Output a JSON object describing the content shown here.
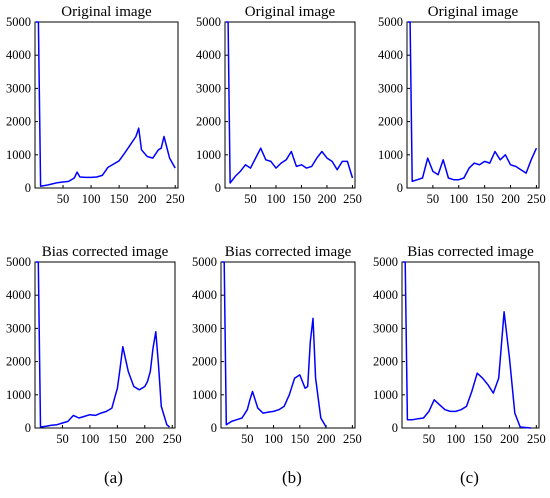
{
  "chart_data": [
    {
      "id": "a-top",
      "type": "line",
      "title": "Original image",
      "xlim": [
        0,
        255
      ],
      "ylim": [
        0,
        5000
      ],
      "xticks": [
        "50",
        "100",
        "150",
        "200",
        "250"
      ],
      "yticks": [
        "0",
        "1000",
        "2000",
        "3000",
        "4000",
        "5000"
      ],
      "series": [
        {
          "color": "#0000ff",
          "x": [
            2,
            6,
            10,
            20,
            30,
            40,
            50,
            60,
            70,
            75,
            80,
            90,
            100,
            110,
            120,
            130,
            140,
            150,
            160,
            170,
            180,
            185,
            190,
            200,
            210,
            220,
            225,
            230,
            240,
            250
          ],
          "y": [
            5000,
            5000,
            50,
            80,
            120,
            160,
            180,
            200,
            300,
            480,
            330,
            320,
            320,
            330,
            380,
            620,
            720,
            820,
            1050,
            1300,
            1550,
            1800,
            1150,
            950,
            900,
            1150,
            1200,
            1550,
            900,
            600
          ]
        }
      ]
    },
    {
      "id": "b-top",
      "type": "line",
      "title": "Original image",
      "xlim": [
        0,
        255
      ],
      "ylim": [
        0,
        5000
      ],
      "xticks": [
        "50",
        "100",
        "150",
        "200",
        "250"
      ],
      "yticks": [
        "0",
        "1000",
        "2000",
        "3000",
        "4000",
        "5000"
      ],
      "series": [
        {
          "color": "#0000ff",
          "x": [
            2,
            6,
            10,
            20,
            30,
            40,
            50,
            60,
            70,
            80,
            90,
            100,
            110,
            120,
            130,
            140,
            150,
            160,
            170,
            180,
            190,
            200,
            210,
            220,
            230,
            240,
            250
          ],
          "y": [
            5000,
            5000,
            150,
            350,
            500,
            700,
            600,
            900,
            1200,
            850,
            800,
            600,
            750,
            850,
            1100,
            650,
            700,
            600,
            650,
            900,
            1100,
            900,
            800,
            550,
            800,
            800,
            300
          ]
        }
      ]
    },
    {
      "id": "c-top",
      "type": "line",
      "title": "Original image",
      "xlim": [
        0,
        255
      ],
      "ylim": [
        0,
        5000
      ],
      "xticks": [
        "50",
        "100",
        "150",
        "200",
        "250"
      ],
      "yticks": [
        "0",
        "1000",
        "2000",
        "3000",
        "4000",
        "5000"
      ],
      "series": [
        {
          "color": "#0000ff",
          "x": [
            2,
            6,
            10,
            20,
            30,
            40,
            50,
            60,
            70,
            80,
            90,
            100,
            110,
            120,
            130,
            140,
            150,
            160,
            170,
            180,
            190,
            200,
            210,
            220,
            230,
            240,
            250
          ],
          "y": [
            5000,
            5000,
            200,
            250,
            300,
            900,
            500,
            400,
            850,
            300,
            250,
            250,
            300,
            600,
            750,
            700,
            800,
            750,
            1100,
            850,
            1000,
            700,
            650,
            550,
            450,
            850,
            1200
          ]
        }
      ]
    },
    {
      "id": "a-bottom",
      "type": "line",
      "title": "Bias corrected image",
      "xlim": [
        0,
        255
      ],
      "ylim": [
        0,
        5000
      ],
      "xticks": [
        "50",
        "100",
        "150",
        "200",
        "250"
      ],
      "yticks": [
        "0",
        "1000",
        "2000",
        "3000",
        "4000",
        "5000"
      ],
      "series": [
        {
          "color": "#0000ff",
          "x": [
            2,
            6,
            10,
            20,
            30,
            40,
            50,
            60,
            70,
            80,
            90,
            100,
            110,
            120,
            130,
            140,
            145,
            150,
            155,
            160,
            170,
            180,
            190,
            200,
            205,
            210,
            215,
            220,
            225,
            230,
            240,
            245
          ],
          "y": [
            5000,
            5000,
            30,
            50,
            80,
            100,
            150,
            200,
            380,
            300,
            350,
            400,
            380,
            450,
            500,
            600,
            900,
            1200,
            1800,
            2450,
            1700,
            1250,
            1150,
            1250,
            1400,
            1700,
            2400,
            2900,
            1900,
            650,
            100,
            30
          ]
        }
      ]
    },
    {
      "id": "b-bottom",
      "type": "line",
      "title": "Bias corrected image",
      "xlim": [
        0,
        255
      ],
      "ylim": [
        0,
        5000
      ],
      "xticks": [
        "50",
        "100",
        "150",
        "200",
        "250"
      ],
      "yticks": [
        "0",
        "1000",
        "2000",
        "3000",
        "4000",
        "5000"
      ],
      "series": [
        {
          "color": "#0000ff",
          "x": [
            2,
            6,
            10,
            20,
            30,
            40,
            50,
            55,
            60,
            70,
            80,
            90,
            100,
            110,
            120,
            130,
            140,
            150,
            160,
            165,
            170,
            175,
            180,
            190,
            200
          ],
          "y": [
            5000,
            5000,
            100,
            200,
            250,
            300,
            550,
            850,
            1100,
            600,
            450,
            480,
            500,
            550,
            650,
            1000,
            1500,
            1600,
            1200,
            1250,
            2600,
            3300,
            1500,
            300,
            30
          ]
        }
      ]
    },
    {
      "id": "c-bottom",
      "type": "line",
      "title": "Bias corrected image",
      "xlim": [
        0,
        255
      ],
      "ylim": [
        0,
        5000
      ],
      "xticks": [
        "50",
        "100",
        "150",
        "200",
        "250"
      ],
      "yticks": [
        "0",
        "1000",
        "2000",
        "3000",
        "4000",
        "5000"
      ],
      "series": [
        {
          "color": "#0000ff",
          "x": [
            2,
            6,
            10,
            20,
            30,
            40,
            50,
            60,
            70,
            80,
            90,
            100,
            110,
            120,
            130,
            140,
            150,
            160,
            170,
            180,
            190,
            200,
            210,
            220,
            240
          ],
          "y": [
            5000,
            5000,
            250,
            250,
            280,
            300,
            500,
            850,
            700,
            550,
            500,
            500,
            550,
            650,
            1100,
            1650,
            1500,
            1300,
            1050,
            1500,
            3500,
            2100,
            450,
            30,
            0
          ]
        }
      ]
    }
  ],
  "panel_labels": [
    "(a)",
    "(b)",
    "(c)"
  ]
}
